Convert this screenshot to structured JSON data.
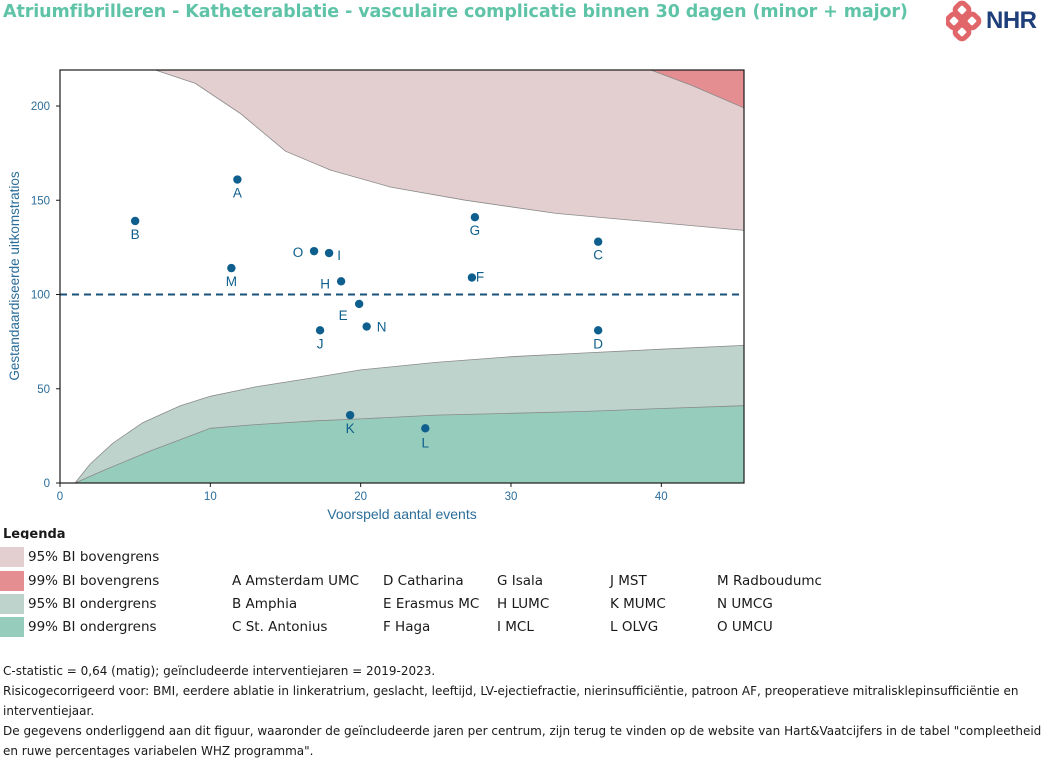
{
  "title": "Atriumfibrilleren - Katheterablatie - vasculaire complicatie binnen 30 dagen (minor + major)",
  "logo": {
    "text": "NHR"
  },
  "chart_data": {
    "type": "scatter",
    "subtype": "funnel-plot",
    "xlabel": "Voorspeld aantal events",
    "ylabel": "Gestandaardiseerde uitkomstratios",
    "xlim": [
      0,
      45.5
    ],
    "ylim": [
      0,
      220
    ],
    "xticks": [
      0,
      10,
      20,
      30,
      40
    ],
    "yticks": [
      0,
      50,
      100,
      150,
      200
    ],
    "reference_line": 100,
    "points": [
      {
        "label": "A",
        "x": 11.8,
        "y": 161
      },
      {
        "label": "B",
        "x": 5.0,
        "y": 139
      },
      {
        "label": "C",
        "x": 35.8,
        "y": 128
      },
      {
        "label": "D",
        "x": 35.8,
        "y": 81
      },
      {
        "label": "E",
        "x": 19.9,
        "y": 95
      },
      {
        "label": "F",
        "x": 27.4,
        "y": 109
      },
      {
        "label": "G",
        "x": 27.6,
        "y": 141
      },
      {
        "label": "H",
        "x": 18.7,
        "y": 107
      },
      {
        "label": "I",
        "x": 17.9,
        "y": 122
      },
      {
        "label": "J",
        "x": 17.3,
        "y": 81
      },
      {
        "label": "K",
        "x": 19.3,
        "y": 36
      },
      {
        "label": "L",
        "x": 24.3,
        "y": 29
      },
      {
        "label": "M",
        "x": 11.4,
        "y": 114
      },
      {
        "label": "N",
        "x": 20.4,
        "y": 83
      },
      {
        "label": "O",
        "x": 16.9,
        "y": 123
      }
    ],
    "bands": {
      "upper95": [
        [
          6,
          220
        ],
        [
          9,
          212
        ],
        [
          12,
          196
        ],
        [
          15,
          176
        ],
        [
          18,
          166
        ],
        [
          22,
          157
        ],
        [
          27,
          150
        ],
        [
          33,
          143
        ],
        [
          40,
          138
        ],
        [
          45.5,
          134
        ]
      ],
      "upper99": [
        [
          39,
          220
        ],
        [
          42,
          211
        ],
        [
          45.5,
          199
        ]
      ],
      "lower95": [
        [
          1,
          0
        ],
        [
          2,
          10
        ],
        [
          3.5,
          21
        ],
        [
          5.5,
          32
        ],
        [
          8,
          41
        ],
        [
          10,
          46
        ],
        [
          13,
          51
        ],
        [
          17,
          56
        ],
        [
          20,
          60
        ],
        [
          25,
          64
        ],
        [
          30,
          67
        ],
        [
          35,
          69
        ],
        [
          40,
          71
        ],
        [
          45.5,
          73
        ]
      ],
      "lower99": [
        [
          1,
          0
        ],
        [
          3,
          7
        ],
        [
          6,
          17
        ],
        [
          8,
          23
        ],
        [
          10,
          29
        ],
        [
          13,
          31
        ],
        [
          17,
          33
        ],
        [
          20,
          34
        ],
        [
          25,
          36
        ],
        [
          30,
          37
        ],
        [
          35,
          38
        ],
        [
          40,
          39.5
        ],
        [
          45.5,
          41
        ]
      ]
    },
    "colors": {
      "upper95": "#e3cfd0",
      "upper99": "#e48e92",
      "lower95": "#bfd3cd",
      "lower99": "#96ccbb",
      "point": "#0e5f8d",
      "axis_text": "#2b6d99",
      "reference_line": "#17517a"
    }
  },
  "legend": {
    "title": "Legenda",
    "bands": [
      {
        "label": "95% BI bovengrens",
        "color": "#e3cfd0"
      },
      {
        "label": "99% BI bovengrens",
        "color": "#e48e92"
      },
      {
        "label": "95% BI ondergrens",
        "color": "#bfd3cd"
      },
      {
        "label": "99% BI ondergrens",
        "color": "#96ccbb"
      }
    ],
    "hospitals": [
      [
        "A Amsterdam UMC",
        "B Amphia",
        "C St. Antonius"
      ],
      [
        "D Catharina",
        "E Erasmus MC",
        "F Haga"
      ],
      [
        "G Isala",
        "H LUMC",
        "I MCL"
      ],
      [
        "J MST",
        "K MUMC",
        "L OLVG"
      ],
      [
        "M Radboudumc",
        "N UMCG",
        "O UMCU"
      ]
    ]
  },
  "footnotes": [
    "C-statistic =  0,64 (matig); geïncludeerde interventiejaren = 2019-2023.",
    "Risicogecorrigeerd voor: BMI, eerdere ablatie in linkeratrium, geslacht, leeftijd, LV-ejectiefractie, nierinsufficiëntie, patroon AF, preoperatieve mitralisklepinsufficiëntie en interventiejaar.",
    "De gegevens onderliggend aan dit figuur, waaronder de geïncludeerde jaren per centrum, zijn terug te vinden op de website van Hart&Vaatcijfers in de tabel \"compleetheid en ruwe percentages variabelen WHZ programma\"."
  ]
}
